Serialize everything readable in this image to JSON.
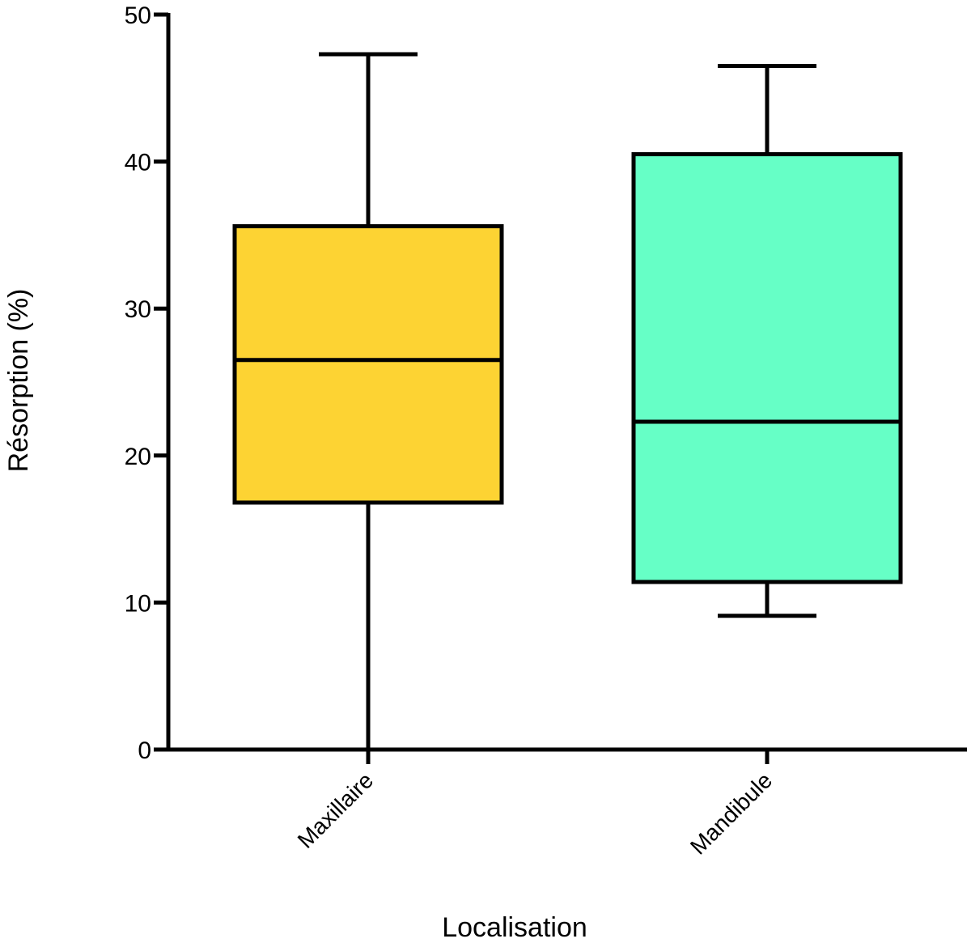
{
  "chart_data": {
    "type": "box",
    "xlabel": "Localisation",
    "ylabel": "Résorption (%)",
    "ylim": [
      0,
      50
    ],
    "yticks": [
      0,
      10,
      20,
      30,
      40,
      50
    ],
    "grid": false,
    "categories": [
      "Maxillaire",
      "Mandibule"
    ],
    "boxes": [
      {
        "category": "Maxillaire",
        "min": 0,
        "q1": 16.8,
        "median": 26.5,
        "q3": 35.6,
        "max": 47.3,
        "color": "#FDD333"
      },
      {
        "category": "Mandibule",
        "min": 9.1,
        "q1": 11.4,
        "median": 22.3,
        "q3": 40.5,
        "max": 46.5,
        "color": "#66FFC6"
      }
    ]
  }
}
